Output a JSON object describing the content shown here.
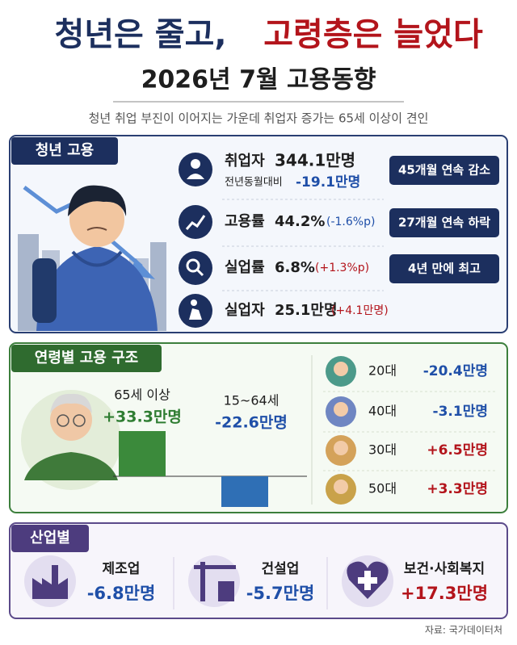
{
  "header": {
    "title": [
      "청년은 줄고,",
      "고령층은 늘었다"
    ],
    "subtitle": "2026년 7월 고용동향",
    "description": "청년 취업 부진이 이어지는 가운데 취업자 증가는 65세 이상이 견인"
  },
  "youth": {
    "title": "청년 고용",
    "rows": [
      {
        "label": "취업자",
        "value": "344.1만명",
        "sub_label": "전년동월대비",
        "change": "-19.1만명",
        "badge": "45개월 연속 감소"
      },
      {
        "label": "고용률",
        "value": "44.2%",
        "change": "(-1.6%p)",
        "badge": "27개월 연속 하락"
      },
      {
        "label": "실업률",
        "value": "6.8%",
        "change": "(+1.3%p)",
        "badge": "4년 만에 최고"
      },
      {
        "label": "실업자",
        "value": "25.1만명",
        "change": "(+4.1만명)"
      }
    ]
  },
  "age_structure": {
    "title": "연령별 고용 구조",
    "chart": {
      "type": "bar",
      "categories": [
        "65세 이상",
        "15~64세"
      ],
      "values": [
        33.3,
        -22.6
      ],
      "value_labels": [
        "+33.3만명",
        "-22.6만명"
      ]
    },
    "ages": [
      {
        "label": "20대",
        "value": "-20.4만명"
      },
      {
        "label": "40대",
        "value": "-3.1만명"
      },
      {
        "label": "30대",
        "value": "+6.5만명"
      },
      {
        "label": "50대",
        "value": "+3.3만명"
      }
    ]
  },
  "industry": {
    "title": "산업별",
    "items": [
      {
        "label": "제조업",
        "value": "-6.8만명"
      },
      {
        "label": "건설업",
        "value": "-5.7만명"
      },
      {
        "label": "보건·사회복지",
        "value": "+17.3만명"
      }
    ]
  },
  "source": "자료: 국가데이터처"
}
